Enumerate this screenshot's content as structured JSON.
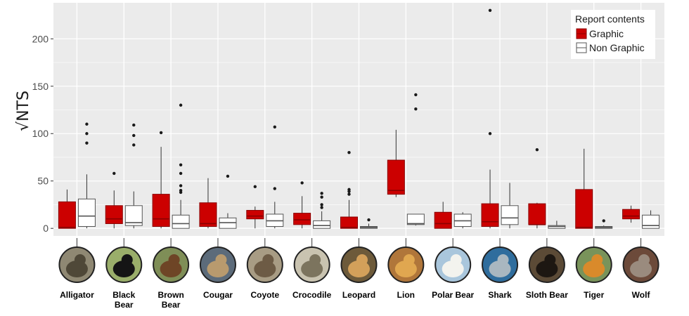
{
  "chart_data": {
    "type": "boxplot",
    "ylabel": "√NTS",
    "ylim": [
      -8,
      238
    ],
    "yticks": [
      0,
      50,
      100,
      150,
      200
    ],
    "grid": true,
    "legend": {
      "title": "Report contents",
      "position": "top-right",
      "entries": [
        "Graphic",
        "Non Graphic"
      ]
    },
    "colors": {
      "graphic_fill": "#cc0000",
      "graphic_stroke": "#8b0000",
      "nongraphic_fill": "#ffffff",
      "nongraphic_stroke": "#555555",
      "panel": "#ebebeb",
      "grid": "#ffffff"
    },
    "categories": [
      {
        "label": [
          "Alligator"
        ],
        "icon": "alligator-icon",
        "art": {
          "bg": "#8f8873",
          "fg": "#4f4838"
        }
      },
      {
        "label": [
          "Black",
          "Bear"
        ],
        "icon": "black-bear-icon",
        "art": {
          "bg": "#9aae6a",
          "fg": "#151515"
        }
      },
      {
        "label": [
          "Brown",
          "Bear"
        ],
        "icon": "brown-bear-icon",
        "art": {
          "bg": "#7f8e57",
          "fg": "#6e4526"
        }
      },
      {
        "label": [
          "Cougar"
        ],
        "icon": "cougar-icon",
        "art": {
          "bg": "#5c6b7a",
          "fg": "#b89a6e"
        }
      },
      {
        "label": [
          "Coyote"
        ],
        "icon": "coyote-icon",
        "art": {
          "bg": "#a89c84",
          "fg": "#6d5b45"
        }
      },
      {
        "label": [
          "Crocodile"
        ],
        "icon": "crocodile-icon",
        "art": {
          "bg": "#c9c3b0",
          "fg": "#7c745e"
        }
      },
      {
        "label": [
          "Leopard"
        ],
        "icon": "leopard-icon",
        "art": {
          "bg": "#6d5a3a",
          "fg": "#d3a05a"
        }
      },
      {
        "label": [
          "Lion"
        ],
        "icon": "lion-icon",
        "art": {
          "bg": "#b0763a",
          "fg": "#e0a750"
        }
      },
      {
        "label": [
          "Polar Bear"
        ],
        "icon": "polar-bear-icon",
        "art": {
          "bg": "#a9c6dc",
          "fg": "#f3f3ee"
        }
      },
      {
        "label": [
          "Shark"
        ],
        "icon": "shark-icon",
        "art": {
          "bg": "#2f6d9d",
          "fg": "#a9b7c0"
        }
      },
      {
        "label": [
          "Sloth Bear"
        ],
        "icon": "sloth-bear-icon",
        "art": {
          "bg": "#5b4a36",
          "fg": "#1d1712"
        }
      },
      {
        "label": [
          "Tiger"
        ],
        "icon": "tiger-icon",
        "art": {
          "bg": "#79935a",
          "fg": "#d98a2b"
        }
      },
      {
        "label": [
          "Wolf"
        ],
        "icon": "wolf-icon",
        "art": {
          "bg": "#6c4a3a",
          "fg": "#9a8b7e"
        }
      }
    ],
    "series": [
      {
        "name": "Graphic",
        "boxes": [
          {
            "min": 0,
            "q1": 0,
            "median": 1,
            "q3": 28,
            "max": 41,
            "outliers": []
          },
          {
            "min": 0,
            "q1": 5,
            "median": 10,
            "q3": 24,
            "max": 40,
            "outliers": [
              58
            ]
          },
          {
            "min": 0,
            "q1": 2,
            "median": 10,
            "q3": 36,
            "max": 86,
            "outliers": [
              101
            ]
          },
          {
            "min": 0,
            "q1": 2,
            "median": 5,
            "q3": 27,
            "max": 53,
            "outliers": []
          },
          {
            "min": 0,
            "q1": 10,
            "median": 13,
            "q3": 19,
            "max": 23,
            "outliers": [
              44
            ]
          },
          {
            "min": 0,
            "q1": 4,
            "median": 9,
            "q3": 16,
            "max": 34,
            "outliers": [
              48
            ]
          },
          {
            "min": 0,
            "q1": 0,
            "median": 1,
            "q3": 12,
            "max": 30,
            "outliers": [
              36,
              39,
              41,
              80
            ]
          },
          {
            "min": 33,
            "q1": 36,
            "median": 40,
            "q3": 72,
            "max": 104,
            "outliers": []
          },
          {
            "min": 0,
            "q1": 0,
            "median": 5,
            "q3": 17,
            "max": 28,
            "outliers": []
          },
          {
            "min": 0,
            "q1": 2,
            "median": 7,
            "q3": 26,
            "max": 62,
            "outliers": [
              100,
              230
            ]
          },
          {
            "min": 0,
            "q1": 4,
            "median": 4,
            "q3": 26,
            "max": 27,
            "outliers": [
              83
            ]
          },
          {
            "min": 0,
            "q1": 0,
            "median": 1,
            "q3": 41,
            "max": 84,
            "outliers": []
          },
          {
            "min": 6,
            "q1": 10,
            "median": 13,
            "q3": 20,
            "max": 24,
            "outliers": []
          }
        ]
      },
      {
        "name": "Non Graphic",
        "boxes": [
          {
            "min": 0,
            "q1": 2,
            "median": 13,
            "q3": 31,
            "max": 57,
            "outliers": [
              90,
              100,
              110
            ]
          },
          {
            "min": 0,
            "q1": 3,
            "median": 6,
            "q3": 24,
            "max": 39,
            "outliers": [
              88,
              98,
              109
            ]
          },
          {
            "min": 0,
            "q1": 0,
            "median": 5,
            "q3": 14,
            "max": 30,
            "outliers": [
              38,
              40,
              45,
              58,
              67,
              130
            ]
          },
          {
            "min": 0,
            "q1": 0,
            "median": 6,
            "q3": 11,
            "max": 16,
            "outliers": [
              55
            ]
          },
          {
            "min": 0,
            "q1": 2,
            "median": 8,
            "q3": 15,
            "max": 28,
            "outliers": [
              42,
              107
            ]
          },
          {
            "min": 0,
            "q1": 0,
            "median": 3,
            "q3": 8,
            "max": 18,
            "outliers": [
              22,
              25,
              33,
              37
            ]
          },
          {
            "min": 0,
            "q1": 0,
            "median": 1,
            "q3": 2,
            "max": 5,
            "outliers": [
              9
            ]
          },
          {
            "min": 3,
            "q1": 4,
            "median": 5,
            "q3": 15,
            "max": 15,
            "outliers": [
              126,
              141
            ]
          },
          {
            "min": 0,
            "q1": 2,
            "median": 8,
            "q3": 15,
            "max": 17,
            "outliers": []
          },
          {
            "min": 0,
            "q1": 4,
            "median": 11,
            "q3": 24,
            "max": 48,
            "outliers": []
          },
          {
            "min": 0,
            "q1": 0,
            "median": 2,
            "q3": 3,
            "max": 8,
            "outliers": []
          },
          {
            "min": 0,
            "q1": 0,
            "median": 1,
            "q3": 2,
            "max": 3,
            "outliers": [
              8
            ]
          },
          {
            "min": 0,
            "q1": 0,
            "median": 3,
            "q3": 14,
            "max": 19,
            "outliers": []
          }
        ]
      }
    ]
  }
}
